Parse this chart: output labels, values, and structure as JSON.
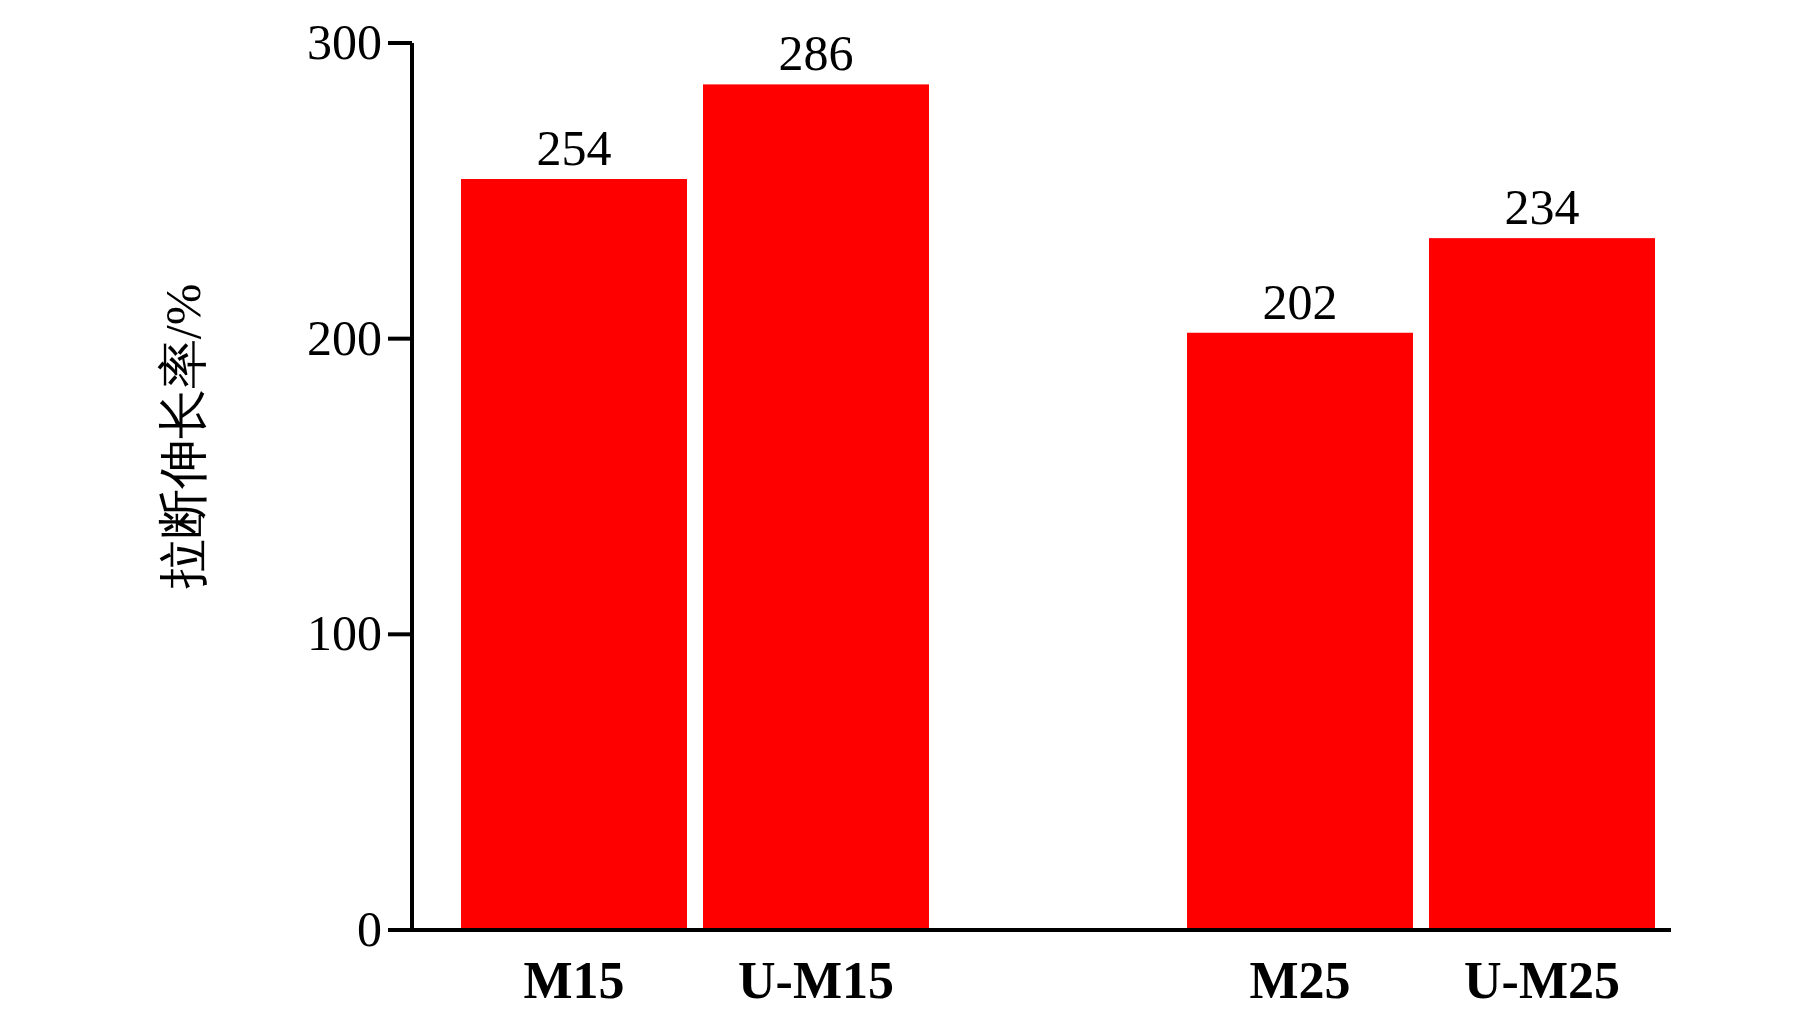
{
  "chart_data": {
    "type": "bar",
    "ylabel": "拉断伸长率/%",
    "categories": [
      "M15",
      "U-M15",
      null,
      "M25",
      "U-M25"
    ],
    "values": [
      254,
      286,
      null,
      202,
      234
    ],
    "color": "#ff0000",
    "ylim": [
      0,
      300
    ],
    "yticks": [
      0,
      100,
      200,
      300
    ],
    "data_labels": true,
    "grid": false
  }
}
